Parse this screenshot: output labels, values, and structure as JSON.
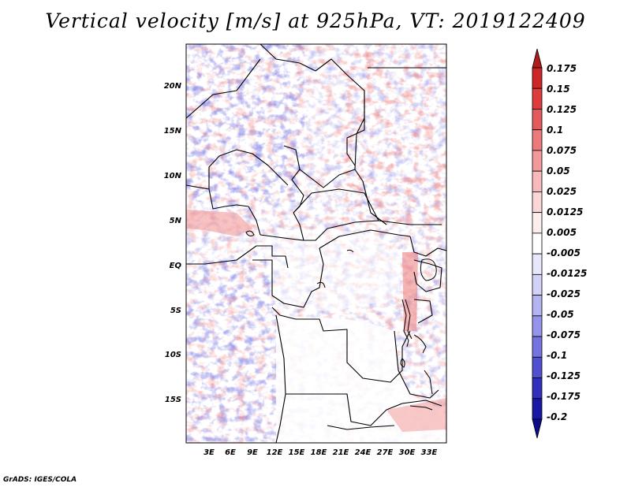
{
  "title": "Vertical velocity [m/s] at 925hPa, VT: 2019122409",
  "map": {
    "lat_ticks": [
      "20N",
      "15N",
      "10N",
      "5N",
      "EQ",
      "5S",
      "10S",
      "15S"
    ],
    "lon_ticks": [
      "3E",
      "6E",
      "9E",
      "12E",
      "15E",
      "18E",
      "21E",
      "24E",
      "27E",
      "30E",
      "33E"
    ],
    "field": "vertical velocity",
    "level": "925hPa",
    "valid_time": "2019122409"
  },
  "colorbar": {
    "labels": [
      "0.175",
      "0.15",
      "0.125",
      "0.1",
      "0.075",
      "0.05",
      "0.025",
      "0.0125",
      "0.005",
      "-0.005",
      "-0.0125",
      "-0.025",
      "-0.05",
      "-0.075",
      "-0.1",
      "-0.125",
      "-0.175",
      "-0.2"
    ],
    "colors": [
      "#b01c1c",
      "#cc2626",
      "#dc3c3c",
      "#e45a5a",
      "#ec7a7a",
      "#f29a9a",
      "#f7baba",
      "#fad6d6",
      "#fdeeee",
      "#ffffff",
      "#e8e8fc",
      "#d2d2f8",
      "#b4b4f2",
      "#9494ea",
      "#7474e0",
      "#5050d0",
      "#3030bc",
      "#1818a4",
      "#0c0c8c"
    ]
  },
  "credit": "GrADS: IGES/COLA"
}
